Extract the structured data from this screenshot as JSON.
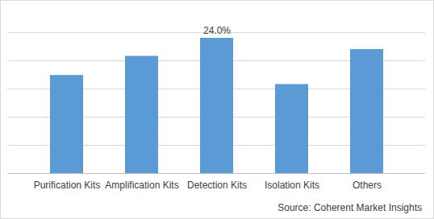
{
  "chart_data": {
    "type": "bar",
    "categories": [
      "Purification Kits",
      "Amplification Kits",
      "Detection Kits",
      "Isolation Kits",
      "Others"
    ],
    "values": [
      17.4,
      20.8,
      24.0,
      15.8,
      22.0
    ],
    "value_labels": [
      null,
      null,
      "24.0%",
      null,
      null
    ],
    "data_labels": true,
    "color": "#5b9bd5",
    "ylim": [
      0,
      25
    ],
    "yticks": [
      0,
      5,
      10,
      15,
      20,
      25
    ],
    "grid": true,
    "tick_labels": "x",
    "source": "Source: Coherent Market Insights"
  }
}
